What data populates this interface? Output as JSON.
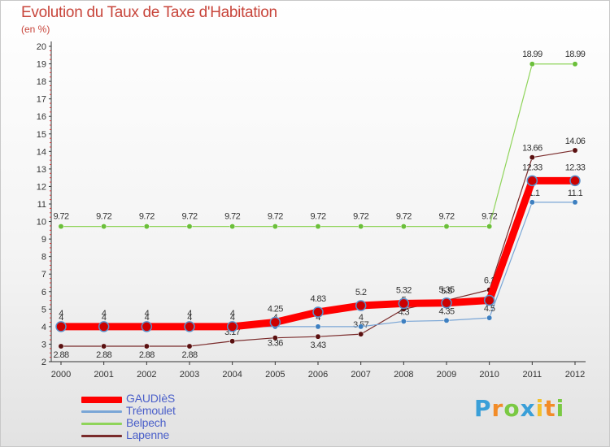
{
  "header": {
    "title": "Evolution du Taux de Taxe d'Habitation",
    "subtitle": "(en %)"
  },
  "chart_data": {
    "type": "line",
    "x": [
      "2000",
      "2001",
      "2002",
      "2003",
      "2004",
      "2005",
      "2006",
      "2007",
      "2008",
      "2009",
      "2010",
      "2011",
      "2012"
    ],
    "ylim": [
      2,
      20
    ],
    "yticks": [
      2,
      3,
      4,
      5,
      6,
      7,
      8,
      9,
      10,
      11,
      12,
      13,
      14,
      15,
      16,
      17,
      18,
      19,
      20
    ],
    "grid": false,
    "legend_position": "bottom-left",
    "series": [
      {
        "name": "GAUDIèS",
        "color": "#ff0000",
        "values": [
          4,
          4,
          4,
          4,
          4,
          4.25,
          4.83,
          5.2,
          5.32,
          5.35,
          5.5,
          12.33,
          12.33
        ],
        "labels": [
          "4",
          "4",
          "4",
          "4",
          "4",
          "4.25",
          "4.83",
          "5.2",
          "5.32",
          "5.35",
          "",
          "12.33",
          "12.33"
        ]
      },
      {
        "name": "Trémoulet",
        "color": "#5b8fc9",
        "values": [
          4,
          4,
          4,
          4,
          4,
          4,
          4,
          4,
          4.3,
          4.35,
          4.5,
          11.1,
          11.1
        ],
        "labels": [
          "4",
          "4",
          "4",
          "4",
          "4",
          "4",
          "4",
          "4",
          "4.3",
          "4.35",
          "4.5",
          "11.1",
          "11.1"
        ]
      },
      {
        "name": "Belpech",
        "color": "#7ac943",
        "values": [
          9.72,
          9.72,
          9.72,
          9.72,
          9.72,
          9.72,
          9.72,
          9.72,
          9.72,
          9.72,
          9.72,
          18.99,
          18.99
        ],
        "labels": [
          "9.72",
          "9.72",
          "9.72",
          "9.72",
          "9.72",
          "9.72",
          "9.72",
          "9.72",
          "9.72",
          "9.72",
          "9.72",
          "18.99",
          "18.99"
        ]
      },
      {
        "name": "Lapenne",
        "color": "#6b1a1a",
        "values": [
          2.88,
          2.88,
          2.88,
          2.88,
          3.17,
          3.36,
          3.43,
          3.57,
          5,
          5.5,
          6.1,
          13.66,
          14.06
        ],
        "labels": [
          "2.88",
          "2.88",
          "2.88",
          "2.88",
          "3.17",
          "3.36",
          "3.43",
          "3.57",
          "5",
          "5.5",
          "6.1",
          "13.66",
          "14.06"
        ]
      }
    ]
  },
  "brand": {
    "letters": [
      "P",
      "r",
      "o",
      "x",
      "i",
      "t",
      "i"
    ],
    "colors": [
      "#3a9fd8",
      "#f28c28",
      "#7ac943",
      "#3a9fd8",
      "#f2c12e",
      "#f28c28",
      "#7ac943"
    ]
  }
}
